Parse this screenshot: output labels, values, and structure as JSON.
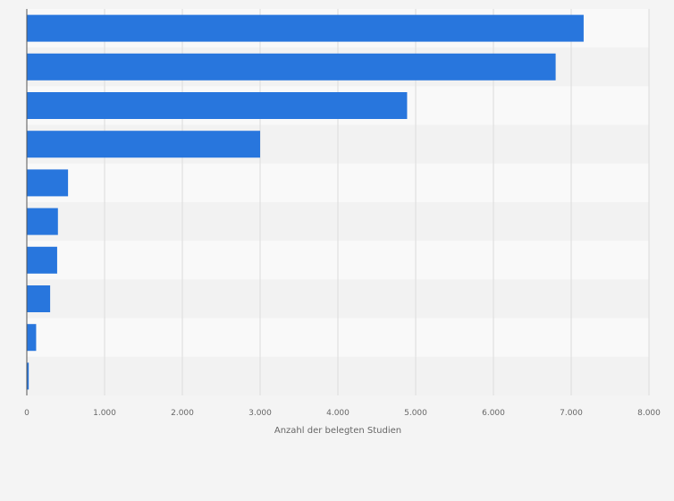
{
  "chart_data": {
    "type": "bar",
    "orientation": "horizontal",
    "title": "",
    "xlabel": "Anzahl der belegten Studien",
    "ylabel": "",
    "categories": [
      "",
      "",
      "",
      "",
      "",
      "",
      "",
      "",
      "",
      ""
    ],
    "values": [
      7160,
      6800,
      4890,
      3000,
      530,
      400,
      390,
      300,
      120,
      25
    ],
    "xlim": [
      0,
      8000
    ],
    "ticks": [
      {
        "value": 0,
        "label": "0"
      },
      {
        "value": 1000,
        "label": "1.000"
      },
      {
        "value": 2000,
        "label": "2.000"
      },
      {
        "value": 3000,
        "label": "3.000"
      },
      {
        "value": 4000,
        "label": "4.000"
      },
      {
        "value": 5000,
        "label": "5.000"
      },
      {
        "value": 6000,
        "label": "6.000"
      },
      {
        "value": 7000,
        "label": "7.000"
      },
      {
        "value": 8000,
        "label": "8.000"
      }
    ],
    "grid": true,
    "legend": "none",
    "colors": {
      "bar": "#2876dd",
      "band_light": "#f9f9f9",
      "band_dark": "#f2f2f2",
      "grid": "#dcdcdc",
      "axis": "#555555"
    }
  }
}
